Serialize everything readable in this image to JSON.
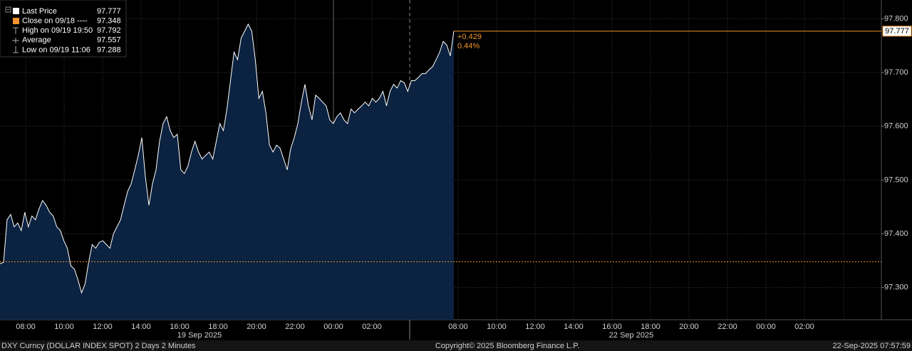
{
  "chart_data": {
    "type": "area",
    "values": [
      97.344,
      97.347,
      97.426,
      97.436,
      97.413,
      97.42,
      97.406,
      97.44,
      97.413,
      97.433,
      97.426,
      97.446,
      97.462,
      97.453,
      97.44,
      97.433,
      97.413,
      97.406,
      97.387,
      97.373,
      97.34,
      97.334,
      97.314,
      97.29,
      97.307,
      97.347,
      97.38,
      97.373,
      97.384,
      97.387,
      97.38,
      97.373,
      97.4,
      97.413,
      97.426,
      97.453,
      97.479,
      97.493,
      97.519,
      97.546,
      97.579,
      97.506,
      97.453,
      97.493,
      97.519,
      97.572,
      97.605,
      97.618,
      97.592,
      97.579,
      97.585,
      97.519,
      97.512,
      97.526,
      97.552,
      97.572,
      97.552,
      97.539,
      97.546,
      97.552,
      97.539,
      97.572,
      97.605,
      97.592,
      97.632,
      97.685,
      97.738,
      97.724,
      97.764,
      97.777,
      97.79,
      97.777,
      97.724,
      97.652,
      97.665,
      97.625,
      97.565,
      97.552,
      97.565,
      97.559,
      97.539,
      97.519,
      97.559,
      97.579,
      97.605,
      97.645,
      97.678,
      97.638,
      97.612,
      97.658,
      97.652,
      97.645,
      97.638,
      97.612,
      97.605,
      97.618,
      97.625,
      97.612,
      97.605,
      97.632,
      97.625,
      97.632,
      97.638,
      97.645,
      97.638,
      97.652,
      97.645,
      97.652,
      97.665,
      97.638,
      97.665,
      97.678,
      97.671,
      97.685,
      97.681,
      97.665,
      97.685,
      97.685,
      97.691,
      97.698,
      97.698,
      97.705,
      97.711,
      97.724,
      97.738,
      97.758,
      97.751,
      97.731,
      97.777
    ],
    "color": "#ffffff",
    "fill_color": "#0b2240",
    "accent_color": "#f0932b",
    "ylim": [
      97.24,
      97.835
    ],
    "yticks": [
      {
        "value": 97.3,
        "label": "97.300"
      },
      {
        "value": 97.4,
        "label": "97.400"
      },
      {
        "value": 97.5,
        "label": "97.500"
      },
      {
        "value": 97.6,
        "label": "97.600"
      },
      {
        "value": 97.7,
        "label": "97.700"
      },
      {
        "value": 97.8,
        "label": "97.800"
      }
    ],
    "grid": true,
    "x_axis": [
      {
        "date": "19 Sep 2025",
        "times": [
          "08:00",
          "10:00",
          "12:00",
          "14:00",
          "16:00",
          "18:00",
          "20:00",
          "22:00",
          "00:00",
          "02:00"
        ]
      },
      {
        "date": "22 Sep 2025",
        "times": [
          "08:00",
          "10:00",
          "12:00",
          "14:00",
          "16:00",
          "18:00",
          "20:00",
          "22:00",
          "00:00",
          "02:00"
        ]
      }
    ],
    "legend": [
      {
        "label": "Last Price",
        "value": 97.777
      },
      {
        "label": "Close on 09/18 ----",
        "value": 97.348
      },
      {
        "label": "High on 09/19 19:50",
        "value": 97.792
      },
      {
        "label": "Average",
        "value": 97.557
      },
      {
        "label": "Low on 09/19 11:06",
        "value": 97.288
      }
    ],
    "change": "+0.429",
    "change_pct": "0.44%"
  },
  "footer": {
    "left": "DXY Curncy (DOLLAR INDEX SPOT) 2 Days 2 Minutes",
    "center": "Copyright© 2025 Bloomberg Finance L.P.",
    "right": "22-Sep-2025 07:57:59"
  }
}
